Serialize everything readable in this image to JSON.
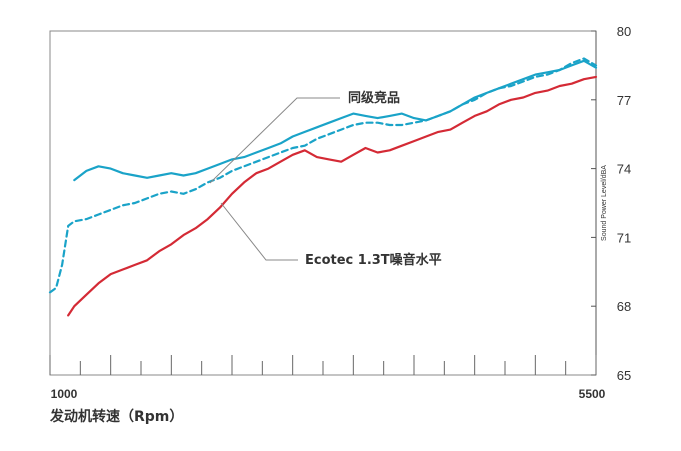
{
  "chart_data": {
    "type": "line",
    "xlabel": "发动机转速（Rpm）",
    "ylabel": "Sound Power Level/dBA",
    "xlim": [
      1000,
      5500
    ],
    "ylim": [
      65,
      80
    ],
    "x_tick_labels": [
      "1000",
      "5500"
    ],
    "y_ticks": [
      65,
      68,
      71,
      74,
      77,
      80
    ],
    "y_tick_labels": [
      "65",
      "68",
      "71",
      "74",
      "77",
      "80"
    ],
    "grid": false,
    "annotations": [
      "同级竞品",
      "Ecotec 1.3T噪音水平"
    ],
    "colors": {
      "cyan": "#1aa3c8",
      "red": "#d42a35",
      "leader": "#888888",
      "axis": "#555555"
    },
    "series": [
      {
        "style": "solid",
        "color": "#1aa3c8",
        "x": [
          1200,
          1300,
          1400,
          1500,
          1600,
          1700,
          1800,
          1900,
          2000,
          2100,
          2200,
          2300,
          2400,
          2500,
          2600,
          2700,
          2800,
          2900,
          3000,
          3100,
          3200,
          3300,
          3400,
          3500,
          3600,
          3700,
          3800,
          3900,
          4000,
          4100,
          4200,
          4300,
          4400,
          4500,
          4600,
          4700,
          4800,
          4900,
          5000,
          5100,
          5200,
          5300,
          5400,
          5500
        ],
        "y": [
          73.5,
          73.9,
          74.1,
          74.0,
          73.8,
          73.7,
          73.6,
          73.7,
          73.8,
          73.7,
          73.8,
          74.0,
          74.2,
          74.4,
          74.5,
          74.7,
          74.9,
          75.1,
          75.4,
          75.6,
          75.8,
          76.0,
          76.2,
          76.4,
          76.3,
          76.2,
          76.3,
          76.4,
          76.2,
          76.1,
          76.3,
          76.5,
          76.8,
          77.1,
          77.3,
          77.5,
          77.7,
          77.9,
          78.1,
          78.2,
          78.3,
          78.5,
          78.7,
          78.4
        ]
      },
      {
        "style": "dashed",
        "color": "#1aa3c8",
        "x": [
          1000,
          1050,
          1100,
          1150,
          1200,
          1300,
          1400,
          1500,
          1600,
          1700,
          1800,
          1900,
          2000,
          2100,
          2200,
          2300,
          2400,
          2500,
          2600,
          2700,
          2800,
          2900,
          3000,
          3100,
          3200,
          3300,
          3400,
          3500,
          3600,
          3700,
          3800,
          3900,
          4000,
          4100,
          4200,
          4300,
          4400,
          4500,
          4600,
          4700,
          4800,
          4900,
          5000,
          5100,
          5200,
          5300,
          5400,
          5500
        ],
        "y": [
          68.6,
          68.8,
          69.8,
          71.5,
          71.7,
          71.8,
          72.0,
          72.2,
          72.4,
          72.5,
          72.7,
          72.9,
          73.0,
          72.9,
          73.1,
          73.4,
          73.6,
          73.9,
          74.1,
          74.3,
          74.5,
          74.7,
          74.9,
          75.0,
          75.3,
          75.5,
          75.7,
          75.9,
          76.0,
          76.0,
          75.9,
          75.9,
          76.0,
          76.1,
          76.3,
          76.5,
          76.8,
          77.0,
          77.3,
          77.5,
          77.6,
          77.8,
          78.0,
          78.1,
          78.3,
          78.6,
          78.8,
          78.5
        ]
      },
      {
        "style": "solid",
        "color": "#d42a35",
        "x": [
          1150,
          1200,
          1300,
          1400,
          1500,
          1600,
          1700,
          1800,
          1900,
          2000,
          2100,
          2200,
          2300,
          2400,
          2500,
          2600,
          2700,
          2800,
          2900,
          3000,
          3100,
          3200,
          3300,
          3400,
          3500,
          3600,
          3700,
          3800,
          3900,
          4000,
          4100,
          4200,
          4300,
          4400,
          4500,
          4600,
          4700,
          4800,
          4900,
          5000,
          5100,
          5200,
          5300,
          5400,
          5500
        ],
        "y": [
          67.6,
          68.0,
          68.5,
          69.0,
          69.4,
          69.6,
          69.8,
          70.0,
          70.4,
          70.7,
          71.1,
          71.4,
          71.8,
          72.3,
          72.9,
          73.4,
          73.8,
          74.0,
          74.3,
          74.6,
          74.8,
          74.5,
          74.4,
          74.3,
          74.6,
          74.9,
          74.7,
          74.8,
          75.0,
          75.2,
          75.4,
          75.6,
          75.7,
          76.0,
          76.3,
          76.5,
          76.8,
          77.0,
          77.1,
          77.3,
          77.4,
          77.6,
          77.7,
          77.9,
          78.0
        ]
      }
    ]
  }
}
